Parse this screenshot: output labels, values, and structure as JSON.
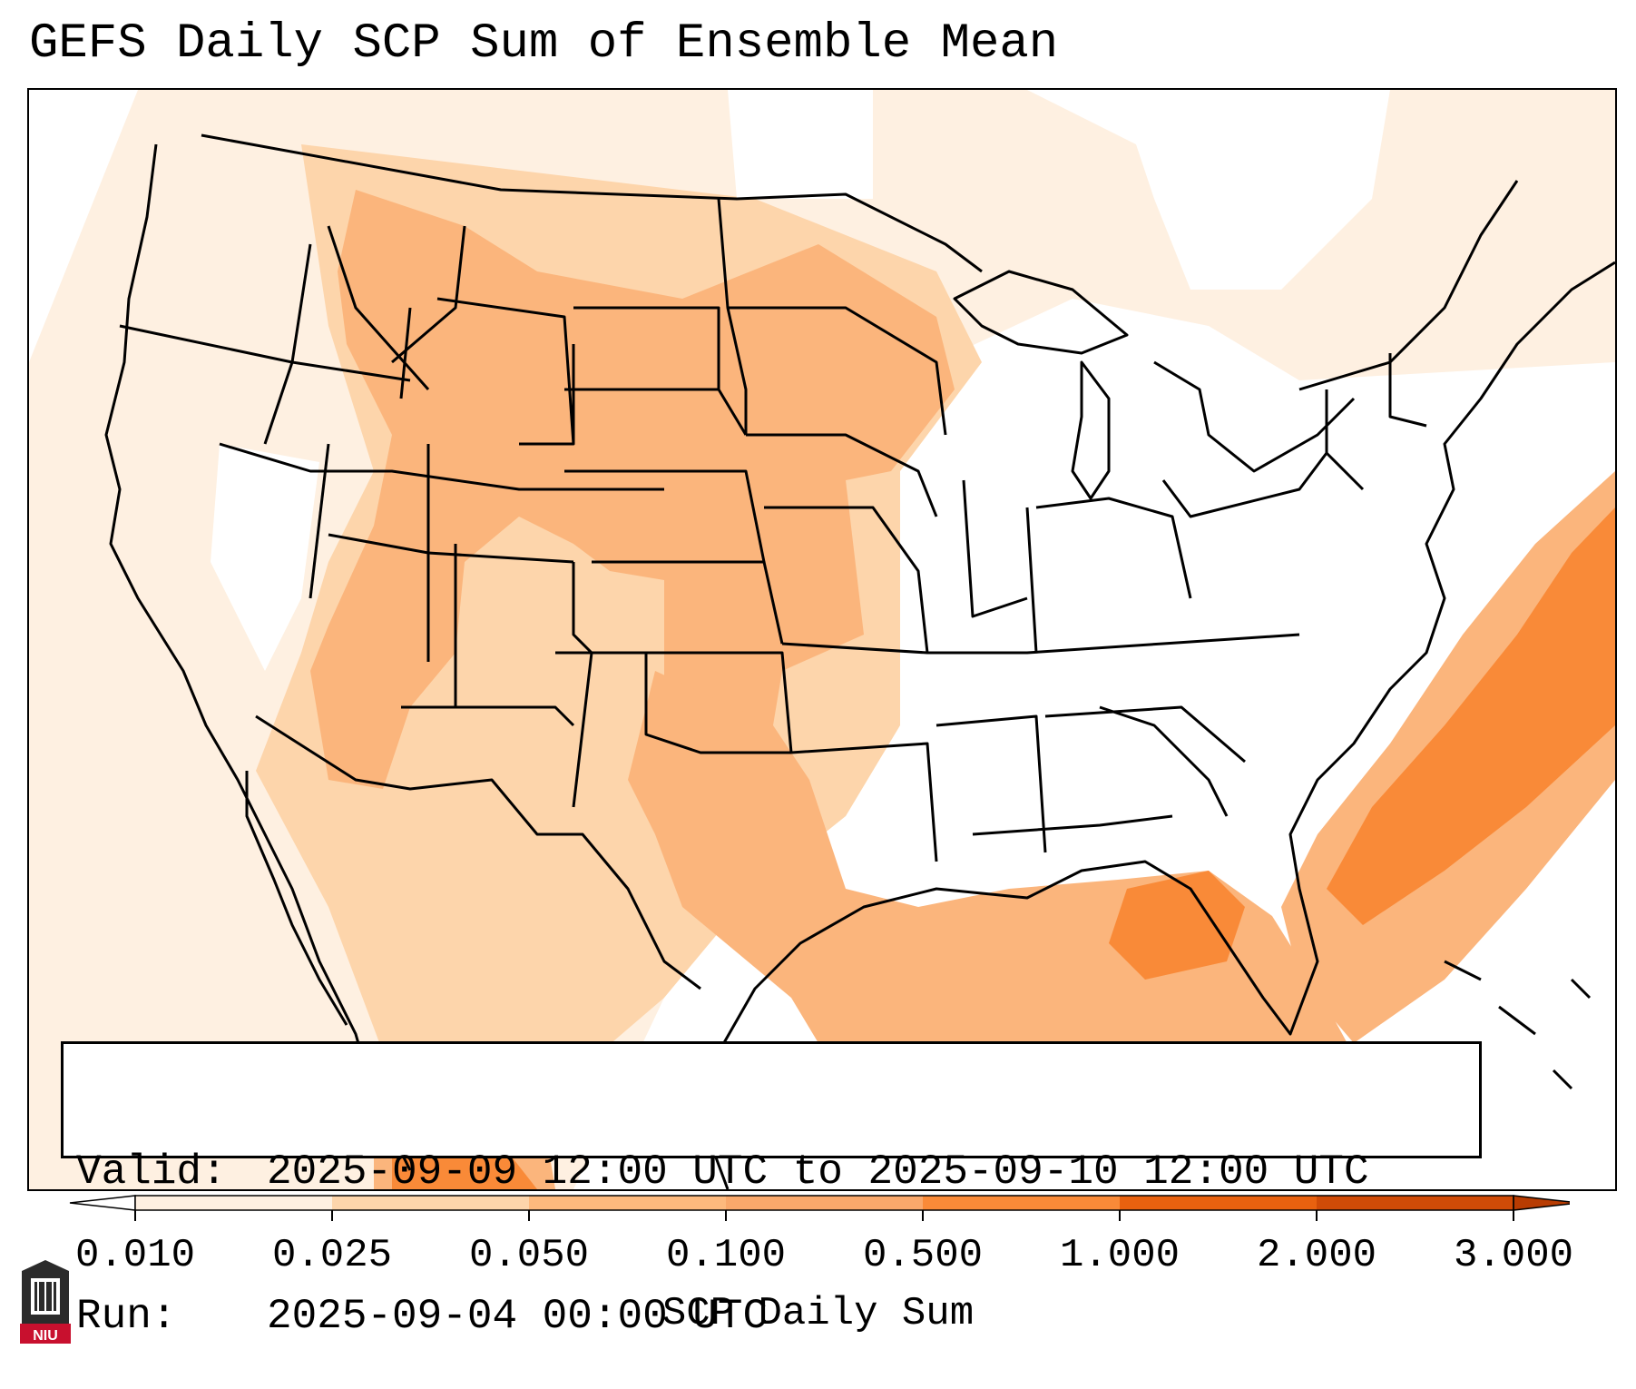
{
  "title": "GEFS Daily SCP Sum of Ensemble Mean",
  "infobox": {
    "valid_label": "Valid:",
    "valid_value": "2025-09-09 12:00 UTC to 2025-09-10 12:00 UTC",
    "run_label": "Run:",
    "run_value": "2025-09-04 00:00 UTC"
  },
  "colorbar": {
    "label": "SCP Daily Sum",
    "ticks": [
      "0.010",
      "0.025",
      "0.050",
      "0.100",
      "0.500",
      "1.000",
      "2.000",
      "3.000"
    ],
    "colors": [
      "#fef0e1",
      "#fdd5ab",
      "#fdb97d",
      "#f9a86b",
      "#f98a38",
      "#e8610f",
      "#d04b07"
    ],
    "extend": "both"
  },
  "field": {
    "categories": [
      "0.010-0.025",
      "0.025-0.050",
      "0.050-0.100",
      "0.100-0.500",
      "0.500-1.000"
    ],
    "regions": [
      {
        "name": "Northern Plains",
        "level": 3
      },
      {
        "name": "Central and Southern High Plains",
        "level": 3
      },
      {
        "name": "Intermountain West",
        "level": 3
      },
      {
        "name": "Texas",
        "level": 3
      },
      {
        "name": "Gulf of Mexico",
        "level": 3
      },
      {
        "name": "Northeastern Gulf of Mexico",
        "level": 4
      },
      {
        "name": "Western Atlantic off Southeast Coast",
        "level": 4
      },
      {
        "name": "Eastern US",
        "level": 0
      }
    ]
  },
  "logo": {
    "text": "NIU",
    "icon": "niu-tower-logo-icon"
  }
}
